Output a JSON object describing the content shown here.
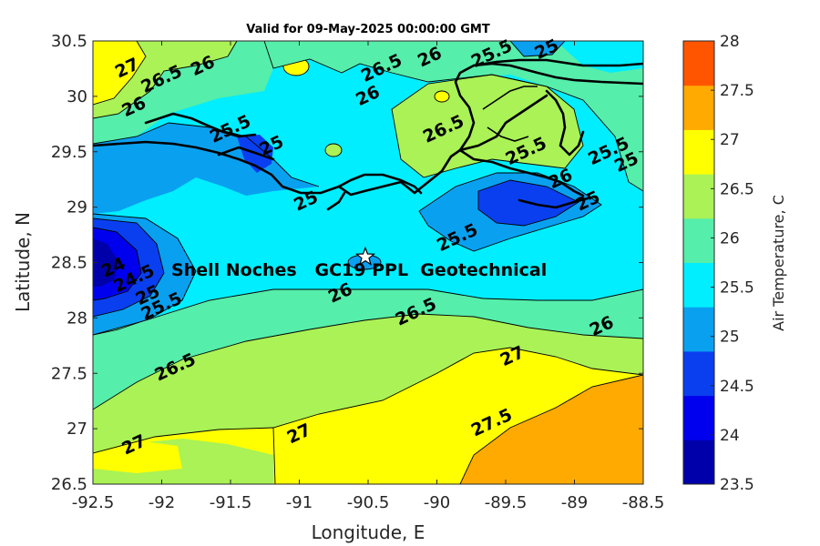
{
  "title": "Valid for 09-May-2025 00:00:00 GMT",
  "xlabel": "Longitude, E",
  "ylabel": "Latitude, N",
  "colorbar_label": "Air Temperature, C",
  "annotation": "Shell Noches   GC19 PPL  Geotechnical",
  "marker": {
    "lon": -90.52,
    "lat": 28.55,
    "icon": "star-icon"
  },
  "chart_data": {
    "type": "contour",
    "xlim": [
      -92.5,
      -88.5
    ],
    "ylim": [
      26.5,
      30.5
    ],
    "x_ticks": [
      "-92.5",
      "-92",
      "-91.5",
      "-91",
      "-90.5",
      "-90",
      "-89.5",
      "-89",
      "-88.5"
    ],
    "y_ticks": [
      "26.5",
      "27",
      "27.5",
      "28",
      "28.5",
      "29",
      "29.5",
      "30",
      "30.5"
    ],
    "colorbar": {
      "min": 23.5,
      "max": 28,
      "step": 0.5,
      "ticks": [
        "23.5",
        "24",
        "24.5",
        "25",
        "25.5",
        "26",
        "26.5",
        "27",
        "27.5",
        "28"
      ],
      "colors": [
        "#0000aa",
        "#0000ee",
        "#0a3ff0",
        "#0aa0f0",
        "#00eeff",
        "#55eeaa",
        "#aaf255",
        "#ffff00",
        "#ffaa00",
        "#ff5500"
      ]
    },
    "contour_labels": [
      {
        "text": "27",
        "lon": -92.25,
        "lat": 30.25
      },
      {
        "text": "26.5",
        "lon": -92.0,
        "lat": 30.15
      },
      {
        "text": "26",
        "lon": -91.7,
        "lat": 30.27
      },
      {
        "text": "26",
        "lon": -92.2,
        "lat": 29.9
      },
      {
        "text": "25.5",
        "lon": -91.5,
        "lat": 29.7
      },
      {
        "text": "25",
        "lon": -91.2,
        "lat": 29.55
      },
      {
        "text": "25",
        "lon": -90.95,
        "lat": 29.05
      },
      {
        "text": "26.5",
        "lon": -90.4,
        "lat": 30.25
      },
      {
        "text": "26",
        "lon": -90.05,
        "lat": 30.35
      },
      {
        "text": "25.5",
        "lon": -89.6,
        "lat": 30.38
      },
      {
        "text": "25",
        "lon": -89.2,
        "lat": 30.42
      },
      {
        "text": "26",
        "lon": -90.5,
        "lat": 30.0
      },
      {
        "text": "26.5",
        "lon": -89.95,
        "lat": 29.7
      },
      {
        "text": "25.5",
        "lon": -89.35,
        "lat": 29.5
      },
      {
        "text": "26",
        "lon": -89.1,
        "lat": 29.25
      },
      {
        "text": "25.5",
        "lon": -88.75,
        "lat": 29.5
      },
      {
        "text": "25",
        "lon": -88.62,
        "lat": 29.4
      },
      {
        "text": "25",
        "lon": -88.9,
        "lat": 29.05
      },
      {
        "text": "25.5",
        "lon": -89.85,
        "lat": 28.72
      },
      {
        "text": "24",
        "lon": -92.35,
        "lat": 28.45
      },
      {
        "text": "24.5",
        "lon": -92.2,
        "lat": 28.35
      },
      {
        "text": "25",
        "lon": -92.1,
        "lat": 28.2
      },
      {
        "text": "25.5",
        "lon": -92.0,
        "lat": 28.1
      },
      {
        "text": "26",
        "lon": -90.7,
        "lat": 28.22
      },
      {
        "text": "26.5",
        "lon": -90.15,
        "lat": 28.05
      },
      {
        "text": "26",
        "lon": -88.8,
        "lat": 27.92
      },
      {
        "text": "26.5",
        "lon": -91.9,
        "lat": 27.55
      },
      {
        "text": "27",
        "lon": -89.45,
        "lat": 27.65
      },
      {
        "text": "27",
        "lon": -92.2,
        "lat": 26.85
      },
      {
        "text": "27",
        "lon": -91.0,
        "lat": 26.95
      },
      {
        "text": "27.5",
        "lon": -89.6,
        "lat": 27.05
      }
    ]
  }
}
